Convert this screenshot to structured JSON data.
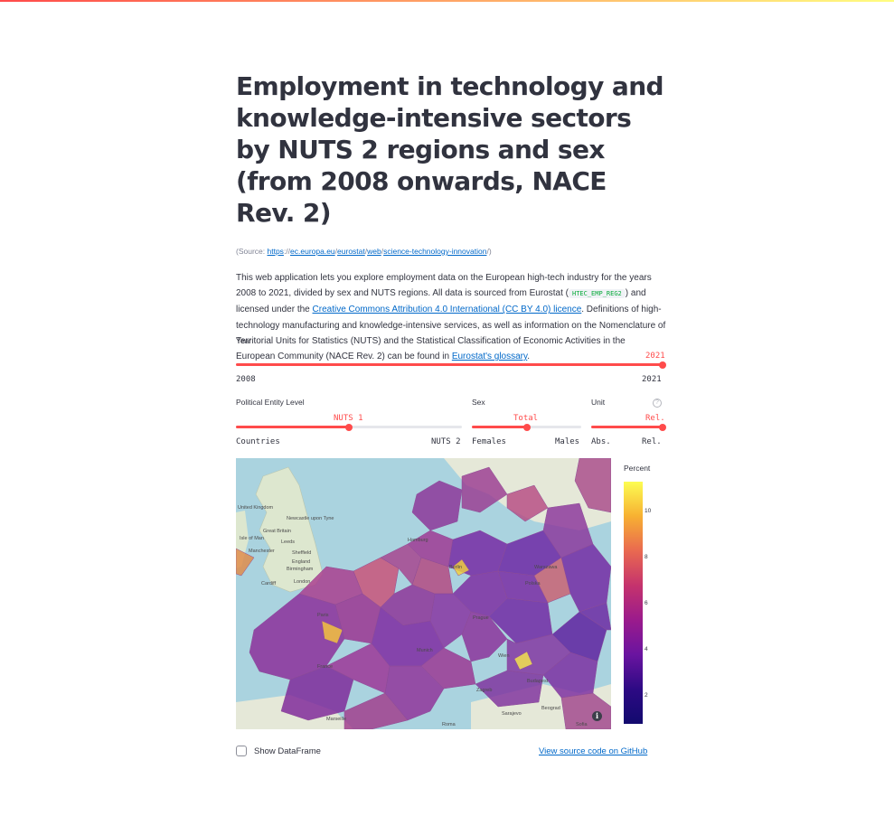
{
  "title": "Employment in technology and knowledge-intensive sectors by NUTS 2 regions and sex (from 2008 onwards, NACE Rev. 2)",
  "source": {
    "prefix": "(Source: ",
    "parts": [
      "https",
      "://",
      "ec.europa.eu",
      "/",
      "eurostat",
      "/",
      "web",
      "/",
      "science-technology-innovation",
      "/)"
    ]
  },
  "description": {
    "text1": "This web application lets you explore employment data on the European high-tech industry for the years 2008 to 2021, divided by sex and NUTS regions. All data is sourced from Eurostat (",
    "dataset_code": "HTEC_EMP_REG2",
    "text2": ") and licensed under the ",
    "license_link": "Creative Commons Attribution 4.0 International (CC BY 4.0) licence",
    "text3": ". Definitions of high-technology manufacturing and knowledge-intensive services, as well as information on the Nomenclature of Territorial Units for Statistics (NUTS) and the Statistical Classification of Economic Activities in the European Community (NACE Rev. 2) can be found in ",
    "glossary_link": "Eurostat's glossary",
    "text4": "."
  },
  "year_slider": {
    "label": "Year",
    "value": "2021",
    "min": "2008",
    "max": "2021",
    "fraction": 1.0
  },
  "level_slider": {
    "label": "Political Entity Level",
    "value": "NUTS 1",
    "min": "Countries",
    "max": "NUTS 2",
    "fraction": 0.5
  },
  "sex_slider": {
    "label": "Sex",
    "value": "Total",
    "min": "Females",
    "max": "Males",
    "fraction": 0.5
  },
  "unit_slider": {
    "label": "Unit",
    "value": "Rel.",
    "min": "Abs.",
    "max": "Rel.",
    "fraction": 1.0,
    "help_icon": "?"
  },
  "colorbar": {
    "title": "Percent",
    "ticks": [
      "10",
      "8",
      "6",
      "4",
      "2"
    ],
    "colors": [
      "#fcfd52",
      "#f7b032",
      "#e96950",
      "#c5336d",
      "#9b1b8c",
      "#6a14a0",
      "#2d0a84",
      "#120a6e"
    ]
  },
  "map": {
    "labels": [
      "United Kingdom",
      "Newcastle upon Tyne",
      "Great Britain",
      "Isle of Man",
      "Leeds",
      "Manchester",
      "Sheffield",
      "Birmingham",
      "England",
      "London",
      "Cardiff",
      "Paris",
      "France",
      "Marseille",
      "Berlin",
      "Hamburg",
      "Prague",
      "Wien",
      "Munich",
      "Warszawa",
      "Polska",
      "Budapest",
      "Beograd",
      "Zagreb",
      "Roma",
      "Sarajevo",
      "Sofia"
    ],
    "info_icon": "i"
  },
  "show_dataframe": {
    "label": "Show DataFrame",
    "checked": false
  },
  "github_link": "View source code on GitHub"
}
